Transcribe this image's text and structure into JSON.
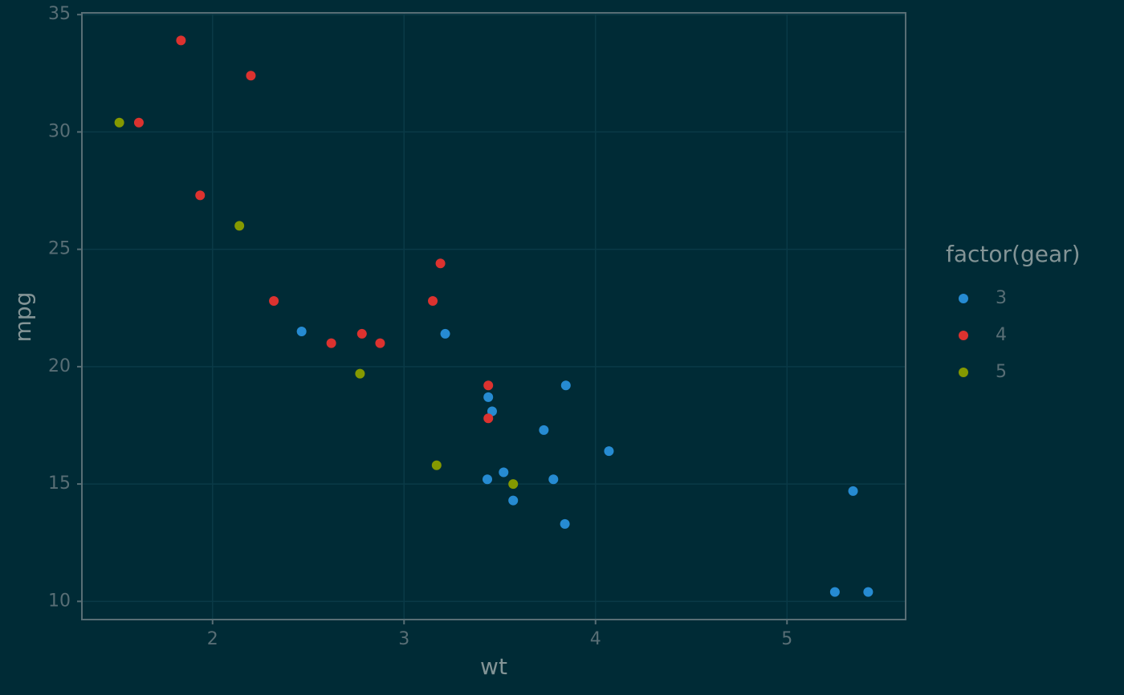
{
  "chart_data": {
    "type": "scatter",
    "x_label": "wt",
    "y_label": "mpg",
    "legend_title": "factor(gear)",
    "xlim": [
      1.3175,
      5.6195
    ],
    "ylim": [
      9.225,
      35.075
    ],
    "xticks": [
      2,
      3,
      4,
      5
    ],
    "yticks": [
      10,
      15,
      20,
      25,
      30,
      35
    ],
    "grid": true,
    "legend_position": "right",
    "series": [
      {
        "name": "3",
        "color": "#268bd2",
        "x": [
          3.215,
          3.44,
          3.46,
          3.57,
          4.07,
          3.73,
          3.78,
          5.25,
          5.424,
          5.345,
          2.465,
          3.52,
          3.435,
          3.84,
          3.845
        ],
        "values": [
          21.4,
          18.7,
          18.1,
          14.3,
          16.4,
          17.3,
          15.2,
          10.4,
          10.4,
          14.7,
          21.5,
          15.5,
          15.2,
          13.3,
          19.2
        ]
      },
      {
        "name": "4",
        "color": "#dc322f",
        "x": [
          2.62,
          2.875,
          2.32,
          3.19,
          3.15,
          3.44,
          3.44,
          2.2,
          1.615,
          1.835,
          1.935,
          2.78
        ],
        "values": [
          21,
          21,
          22.8,
          24.4,
          22.8,
          19.2,
          17.8,
          32.4,
          30.4,
          33.9,
          27.3,
          21.4
        ]
      },
      {
        "name": "5",
        "color": "#859900",
        "x": [
          2.14,
          1.513,
          3.17,
          2.77,
          3.57
        ],
        "values": [
          26,
          30.4,
          15.8,
          19.7,
          15
        ]
      }
    ]
  }
}
